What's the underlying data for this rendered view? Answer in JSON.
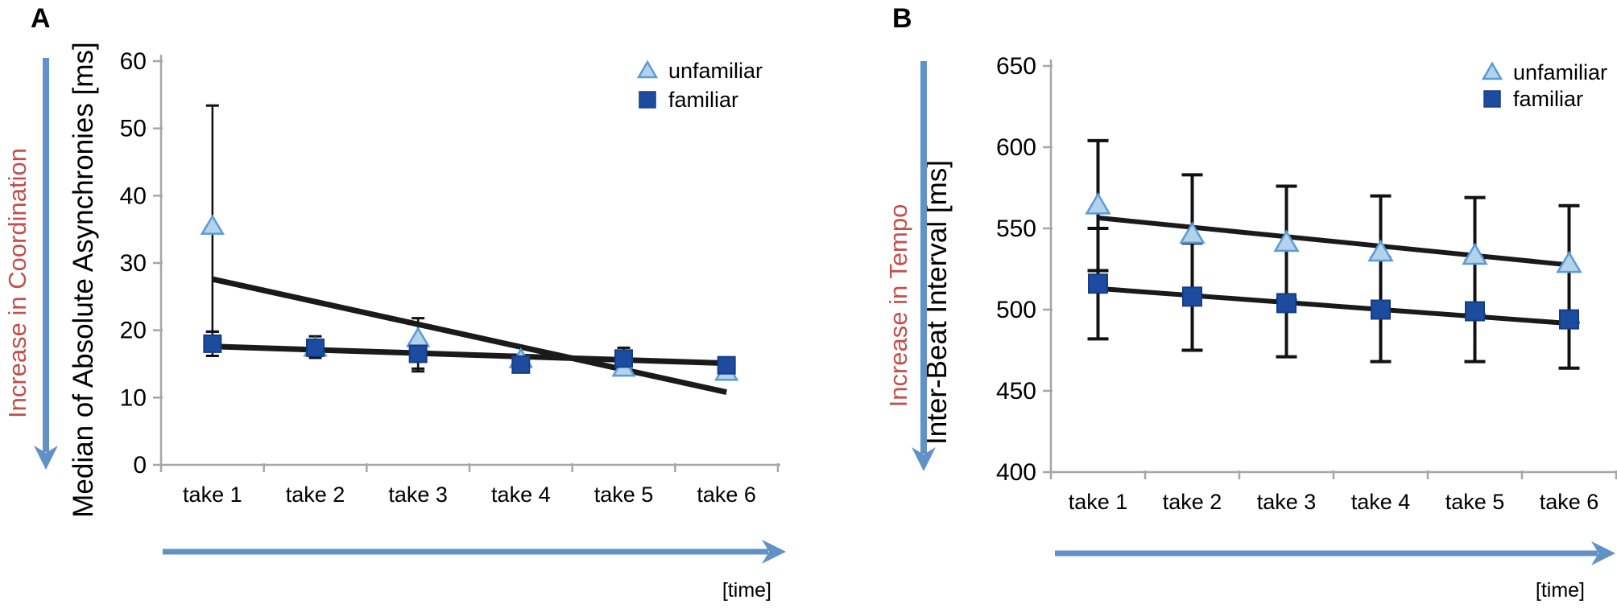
{
  "colors": {
    "unfamiliar_fill": "#b3d2ec",
    "unfamiliar_stroke": "#5b9bd5",
    "familiar_fill": "#1d4ba0",
    "familiar_stroke": "#163d85",
    "trend_line": "#1a1a1a",
    "error_bar": "#111111",
    "axis": "#a6a6a6",
    "tick_text": "#000000",
    "side_label_red": "#c0504d",
    "arrow_blue": "#6191c6"
  },
  "chart_data": [
    {
      "type": "line",
      "panel_letter": "A",
      "side_label": "Increase in Coordination",
      "ylabel": "Median of Absolute Asynchronies [ms]",
      "xlabel": "[time]",
      "categories": [
        "take 1",
        "take 2",
        "take 3",
        "take 4",
        "take 5",
        "take 6"
      ],
      "ylim": [
        0,
        60
      ],
      "y_ticks": [
        60,
        50,
        40,
        30,
        20,
        10,
        0
      ],
      "grid": false,
      "legend_position": "top-right",
      "series": [
        {
          "name": "unfamiliar",
          "marker": "triangle",
          "values": [
            35.4,
            17.3,
            18.7,
            15.6,
            14.3,
            13.7
          ],
          "err_low": [
            19.8,
            null,
            14.3,
            null,
            null,
            null
          ],
          "err_high": [
            53.4,
            null,
            21.8,
            null,
            null,
            null
          ],
          "trend": [
            27.6,
            10.8
          ]
        },
        {
          "name": "familiar",
          "marker": "square",
          "values": [
            18.0,
            17.4,
            16.5,
            14.9,
            15.8,
            14.8
          ],
          "err_low": [
            16.2,
            15.9,
            13.9,
            14.4,
            15.0,
            null
          ],
          "err_high": [
            19.8,
            19.1,
            17.9,
            15.4,
            17.4,
            null
          ],
          "trend": [
            17.6,
            15.1
          ]
        }
      ]
    },
    {
      "type": "line",
      "panel_letter": "B",
      "side_label": "Increase in Tempo",
      "ylabel": "Inter-Beat Interval [ms]",
      "xlabel": "[time]",
      "categories": [
        "take 1",
        "take 2",
        "take 3",
        "take 4",
        "take 5",
        "take 6"
      ],
      "ylim": [
        400,
        650
      ],
      "y_ticks": [
        650,
        600,
        550,
        500,
        450,
        400
      ],
      "grid": false,
      "legend_position": "top-right",
      "series": [
        {
          "name": "unfamiliar",
          "marker": "triangle",
          "values": [
            564,
            546,
            541,
            535,
            533,
            528
          ],
          "err_low": [
            524,
            509,
            506,
            500,
            497,
            492
          ],
          "err_high": [
            604,
            583,
            576,
            570,
            569,
            564
          ],
          "trend": [
            556.5,
            527.5
          ]
        },
        {
          "name": "familiar",
          "marker": "square",
          "values": [
            516,
            508,
            504,
            500,
            499,
            494
          ],
          "err_low": [
            482,
            475,
            471,
            468,
            468,
            464
          ],
          "err_high": [
            550,
            541,
            537,
            532,
            530,
            524
          ],
          "trend": [
            513,
            491.5
          ]
        }
      ]
    }
  ]
}
